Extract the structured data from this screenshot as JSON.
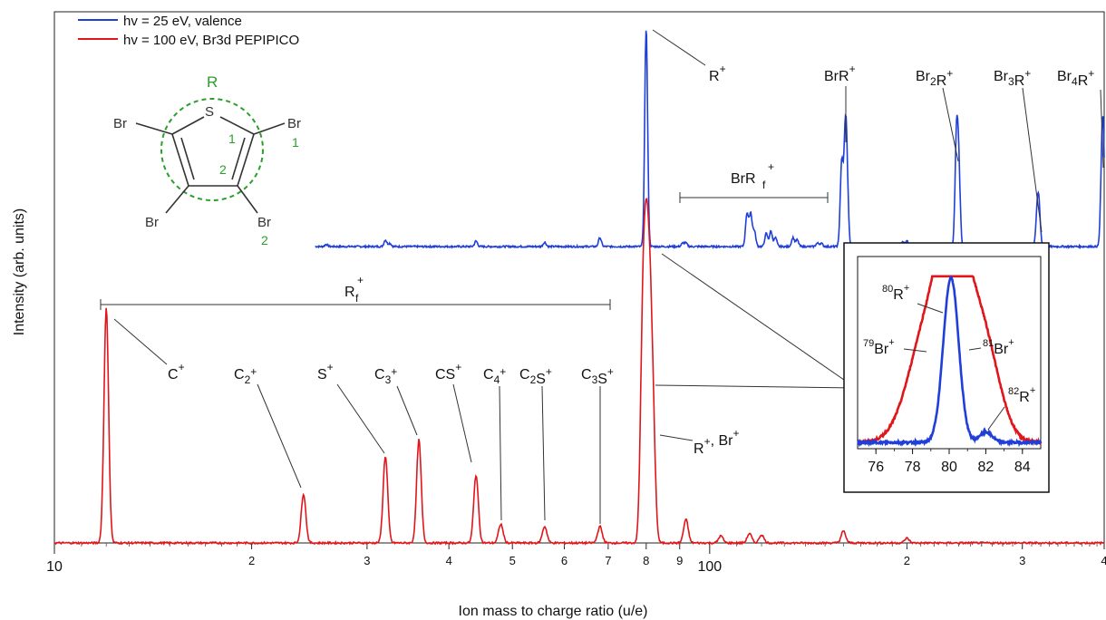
{
  "chart_data": {
    "type": "line",
    "x_scale": "log",
    "xlim": [
      10,
      400
    ],
    "xlabel": "Ion mass to charge ratio (u/e)",
    "ylabel": "Intensity (arb. units)",
    "x_ticks_major": [
      {
        "v": 10,
        "label": "10"
      },
      {
        "v": 100,
        "label": "100"
      }
    ],
    "x_ticks_minor": [
      {
        "v": 20,
        "label": "2"
      },
      {
        "v": 30,
        "label": "3"
      },
      {
        "v": 40,
        "label": "4"
      },
      {
        "v": 50,
        "label": "5"
      },
      {
        "v": 60,
        "label": "6"
      },
      {
        "v": 70,
        "label": "7"
      },
      {
        "v": 80,
        "label": "8"
      },
      {
        "v": 90,
        "label": "9"
      },
      {
        "v": 200,
        "label": "2"
      },
      {
        "v": 300,
        "label": "3"
      },
      {
        "v": 400,
        "label": "4"
      }
    ],
    "legend": [
      {
        "label": "hv = 25 eV, valence",
        "color": "#1f3fd8"
      },
      {
        "label": "hv = 100  eV, Br3d PEPIPICO",
        "color": "#e0161b"
      }
    ],
    "series": [
      {
        "name": "hv = 25 eV, valence",
        "color": "#1f3fd8",
        "y_range": [
          0,
          1
        ],
        "x_start": 25,
        "peaks": [
          {
            "x": 26,
            "h": 0.01
          },
          {
            "x": 32,
            "h": 0.03
          },
          {
            "x": 32.5,
            "h": 0.015
          },
          {
            "x": 44,
            "h": 0.025
          },
          {
            "x": 56,
            "h": 0.02
          },
          {
            "x": 68,
            "h": 0.04
          },
          {
            "x": 80,
            "h": 1.0
          },
          {
            "x": 91,
            "h": 0.015
          },
          {
            "x": 92,
            "h": 0.015
          },
          {
            "x": 114,
            "h": 0.15
          },
          {
            "x": 115.5,
            "h": 0.15
          },
          {
            "x": 117,
            "h": 0.07
          },
          {
            "x": 122,
            "h": 0.06
          },
          {
            "x": 124,
            "h": 0.07
          },
          {
            "x": 126,
            "h": 0.04
          },
          {
            "x": 134,
            "h": 0.04
          },
          {
            "x": 136,
            "h": 0.03
          },
          {
            "x": 146,
            "h": 0.015
          },
          {
            "x": 148,
            "h": 0.015
          },
          {
            "x": 159,
            "h": 0.38
          },
          {
            "x": 161,
            "h": 0.44
          },
          {
            "x": 162,
            "h": 0.27
          },
          {
            "x": 180,
            "h": 0.01
          },
          {
            "x": 197,
            "h": 0.02
          },
          {
            "x": 200,
            "h": 0.025
          },
          {
            "x": 238,
            "h": 0.48
          },
          {
            "x": 240,
            "h": 0.34
          },
          {
            "x": 278,
            "h": 0.015
          },
          {
            "x": 316,
            "h": 0.13
          },
          {
            "x": 318,
            "h": 0.17
          },
          {
            "x": 397,
            "h": 0.35
          },
          {
            "x": 399,
            "h": 0.33
          }
        ]
      },
      {
        "name": "hv = 100  eV, Br3d PEPIPICO",
        "color": "#e0161b",
        "y_range": [
          0,
          1
        ],
        "x_start": 10,
        "peaks": [
          {
            "x": 12,
            "h": 1.0
          },
          {
            "x": 24,
            "h": 0.21
          },
          {
            "x": 32,
            "h": 0.37
          },
          {
            "x": 36,
            "h": 0.44
          },
          {
            "x": 44,
            "h": 0.29
          },
          {
            "x": 48,
            "h": 0.08
          },
          {
            "x": 56,
            "h": 0.07
          },
          {
            "x": 68,
            "h": 0.07
          },
          {
            "x": 79,
            "h": 0.82
          },
          {
            "x": 80,
            "h": 0.97
          },
          {
            "x": 81,
            "h": 0.82
          },
          {
            "x": 82,
            "h": 0.45
          },
          {
            "x": 92,
            "h": 0.1
          },
          {
            "x": 104,
            "h": 0.03
          },
          {
            "x": 115,
            "h": 0.04
          },
          {
            "x": 120,
            "h": 0.035
          },
          {
            "x": 160,
            "h": 0.05
          },
          {
            "x": 200,
            "h": 0.02
          }
        ]
      }
    ],
    "inset": {
      "xlim": [
        75,
        85
      ],
      "ticks": [
        76,
        78,
        80,
        82,
        84
      ],
      "tick_labels": [
        "76",
        "78",
        "80",
        "82",
        "84"
      ],
      "series": [
        {
          "name": "hv = 25 eV, valence",
          "color": "#1f3fd8",
          "peaks": [
            {
              "x": 80.1,
              "h": 0.95,
              "w": 0.42
            },
            {
              "x": 82,
              "h": 0.06,
              "w": 0.35
            }
          ]
        },
        {
          "name": "hv = 100  eV, Br3d PEPIPICO",
          "color": "#e0161b",
          "peaks": [
            {
              "x": 79,
              "h": 0.72,
              "w": 1.1
            },
            {
              "x": 80.1,
              "h": 0.55,
              "w": 0.6
            },
            {
              "x": 81,
              "h": 0.7,
              "w": 1.0
            },
            {
              "x": 82.2,
              "h": 0.25,
              "w": 0.8
            }
          ]
        }
      ],
      "labels": [
        "80R+",
        "79Br+",
        "81Br+",
        "82R+"
      ]
    },
    "annotations": {
      "blue": [
        "R+",
        "BrR+",
        "Br2R+",
        "Br3R+",
        "Br4R+",
        "BrRf+"
      ],
      "red": [
        "C+",
        "C2+",
        "S+",
        "C3+",
        "CS+",
        "C4+",
        "C2S+",
        "C3S+",
        "R+, Br+",
        "Rf+"
      ]
    }
  },
  "molecule": {
    "ring_label": "R",
    "sulfur": "S",
    "bromine": "Br",
    "site_1": "1",
    "site_2": "2"
  }
}
